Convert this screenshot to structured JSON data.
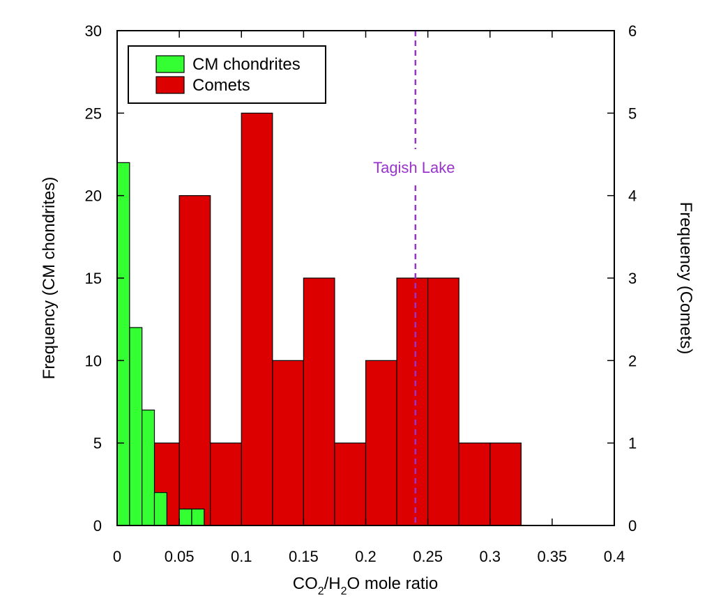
{
  "chart_data": {
    "type": "bar",
    "xlabel_parts": [
      "CO",
      "2",
      "/H",
      "2",
      "O mole ratio"
    ],
    "ylabel_left": "Frequency (CM chondrites)",
    "ylabel_right": "Frequency (Comets)",
    "xlim": [
      0,
      0.4
    ],
    "ylim_left": [
      0,
      30
    ],
    "ylim_right": [
      0,
      6
    ],
    "x_ticks": [
      "0",
      "0.05",
      "0.1",
      "0.15",
      "0.2",
      "0.25",
      "0.3",
      "0.35",
      "0.4"
    ],
    "y_ticks_left": [
      "0",
      "5",
      "10",
      "15",
      "20",
      "25",
      "30"
    ],
    "y_ticks_right": [
      "0",
      "1",
      "2",
      "3",
      "4",
      "5",
      "6"
    ],
    "grid": false,
    "legend_position": "top-left",
    "series": [
      {
        "name": "CM chondrites",
        "color": "#33ff33",
        "axis": "left",
        "bin_width": 0.01,
        "bin_starts": [
          0.0,
          0.01,
          0.02,
          0.03,
          0.05,
          0.06
        ],
        "values": [
          22,
          12,
          7,
          2,
          1,
          1
        ]
      },
      {
        "name": "Comets",
        "color": "#dd0000",
        "axis": "right",
        "bin_width": 0.025,
        "bin_starts": [
          0.025,
          0.05,
          0.075,
          0.1,
          0.125,
          0.15,
          0.175,
          0.2,
          0.225,
          0.25,
          0.275,
          0.3
        ],
        "values": [
          1,
          4,
          1,
          5,
          2,
          3,
          1,
          2,
          3,
          3,
          1,
          1
        ]
      }
    ],
    "annotations": [
      {
        "type": "vline",
        "x": 0.24,
        "label": "Tagish Lake",
        "color": "#9933cc",
        "style": "dashed"
      }
    ]
  }
}
